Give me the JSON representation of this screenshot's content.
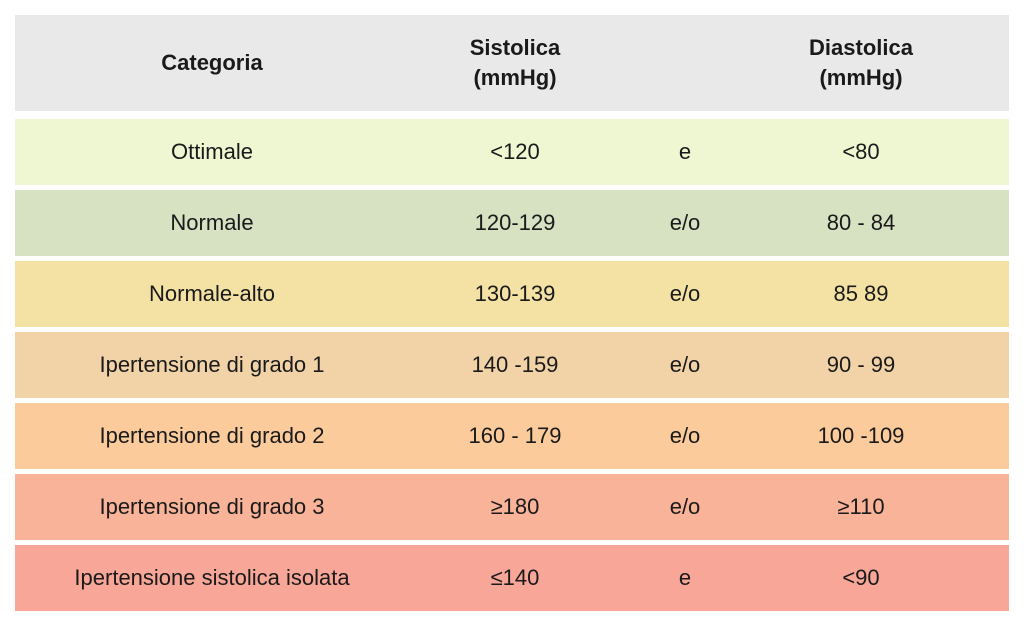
{
  "header": {
    "category": "Categoria",
    "systolic": "Sistolica\n(mmHg)",
    "conjunction": "",
    "diastolic": "Diastolica\n(mmHg)"
  },
  "rows": [
    {
      "category": "Ottimale",
      "systolic": "<120",
      "conjunction": "e",
      "diastolic": "<80",
      "color": "#eef7d2"
    },
    {
      "category": "Normale",
      "systolic": "120-129",
      "conjunction": "e/o",
      "diastolic": "80 - 84",
      "color": "#d6e2c1"
    },
    {
      "category": "Normale-alto",
      "systolic": "130-139",
      "conjunction": "e/o",
      "diastolic": "85  89",
      "color": "#f3e2a3"
    },
    {
      "category": "Ipertensione di grado 1",
      "systolic": "140 -159",
      "conjunction": "e/o",
      "diastolic": "90 - 99",
      "color": "#f2d3a8"
    },
    {
      "category": "Ipertensione di grado 2",
      "systolic": "160 - 179",
      "conjunction": "e/o",
      "diastolic": "100 -109",
      "color": "#fccb9b"
    },
    {
      "category": "Ipertensione di grado 3",
      "systolic": "≥180",
      "conjunction": "e/o",
      "diastolic": "≥110",
      "color": "#f9b398"
    },
    {
      "category": "Ipertensione sistolica isolata",
      "systolic": "≤140",
      "conjunction": "e",
      "diastolic": "<90",
      "color": "#f7a697"
    }
  ],
  "colors": {
    "header_bg": "#e9e9e9"
  }
}
